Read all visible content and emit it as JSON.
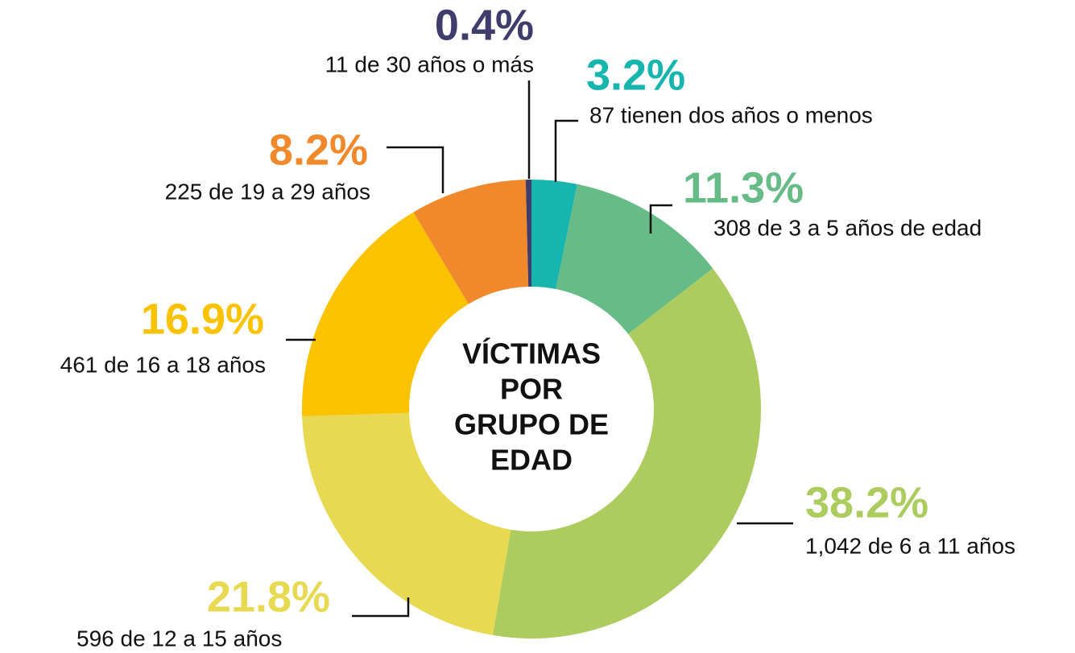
{
  "chart_data": {
    "type": "donut",
    "title": [
      "VÍCTIMAS",
      "POR",
      "GRUPO DE",
      "EDAD"
    ],
    "categories": [
      "87 tienen dos años o menos",
      "308 de 3 a 5 años de edad",
      "1,042 de 6 a 11 años",
      "596 de 12 a 15 años",
      "461 de 16 a 18 años",
      "225 de 19 a 29 años",
      "11 de 30 años o más"
    ],
    "values": [
      3.2,
      11.3,
      38.2,
      21.8,
      16.9,
      8.2,
      0.4
    ],
    "value_labels": [
      "3.2%",
      "11.3%",
      "38.2%",
      "21.8%",
      "16.9%",
      "8.2%",
      "0.4%"
    ],
    "colors": [
      "#17b5ae",
      "#66bb87",
      "#adcc5f",
      "#e8d952",
      "#fbc200",
      "#f0892b",
      "#3e3d6c"
    ]
  }
}
